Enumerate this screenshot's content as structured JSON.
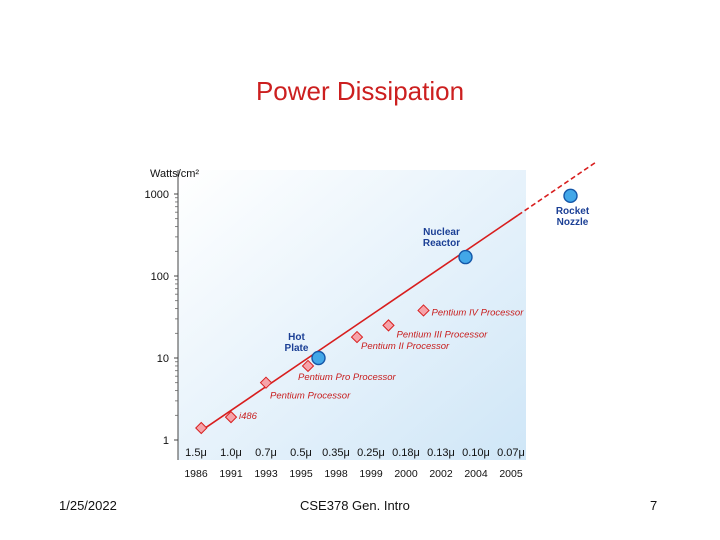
{
  "slide": {
    "title": "Power Dissipation",
    "date": "1/25/2022",
    "course": "CSE378 Gen. Intro",
    "page": "7"
  },
  "chart_data": {
    "type": "scatter",
    "yscale": "log",
    "ylabel": "Watts/cm²",
    "ylim": [
      1,
      1000
    ],
    "ytick_labels": [
      "1000",
      "100",
      "10",
      "1"
    ],
    "xtick_labels_process": [
      "1.5μ",
      "1.0μ",
      "0.7μ",
      "0.5μ",
      "0.35μ",
      "0.25μ",
      "0.18μ",
      "0.13μ",
      "0.10μ",
      "0.07μ"
    ],
    "xtick_labels_year": [
      "1986",
      "1991",
      "1993",
      "1995",
      "1998",
      "1999",
      "2000",
      "2002",
      "2004",
      "2005"
    ],
    "processors": [
      {
        "label": "",
        "x_index": 0.15,
        "value": 1.4
      },
      {
        "label": "i486",
        "x_index": 1.0,
        "value": 1.9
      },
      {
        "label": "Pentium Processor",
        "x_index": 2.0,
        "value": 5
      },
      {
        "label": "Pentium Pro Processor",
        "x_index": 3.2,
        "value": 8
      },
      {
        "label": "Pentium II Processor",
        "x_index": 4.6,
        "value": 18
      },
      {
        "label": "Pentium III Processor",
        "x_index": 5.5,
        "value": 25
      },
      {
        "label": "Pentium IV Processor",
        "x_index": 6.5,
        "value": 38
      }
    ],
    "references": [
      {
        "label_line1": "Hot",
        "label_line2": "Plate",
        "x_index": 3.5,
        "value": 10
      },
      {
        "label_line1": "Nuclear",
        "label_line2": "Reactor",
        "x_index": 7.7,
        "value": 170
      },
      {
        "label_line1": "Rocket",
        "label_line2": "Nozzle",
        "x_index": 10.7,
        "value": 950
      }
    ],
    "trend": {
      "from": {
        "x_index": 0.15,
        "value": 1.3
      },
      "to": {
        "x_index": 11.4,
        "value": 2400
      }
    },
    "colors": {
      "plot_bg_top": "#ffffff",
      "plot_bg_bottom": "#cfe6f7",
      "trend": "#d81e1e",
      "marker_fill": "#f6a3a9",
      "marker_stroke": "#d81e1e",
      "ref_fill": "#42a7e8",
      "ref_stroke": "#1457a8",
      "ref_label": "#1b3f95",
      "proc_label": "#c81e1e"
    },
    "grid": false
  }
}
